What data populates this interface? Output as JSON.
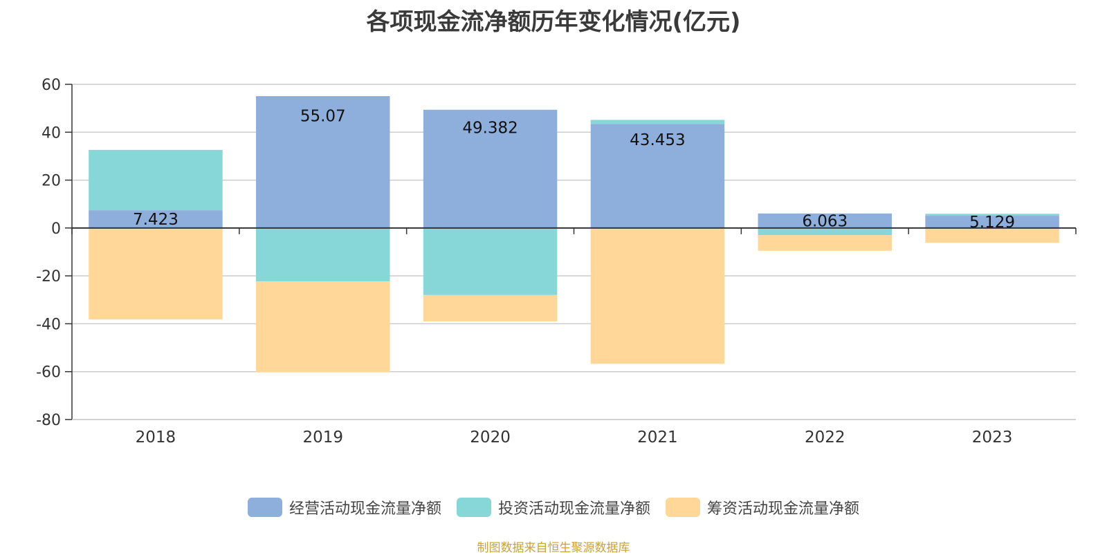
{
  "chart_data": {
    "type": "bar",
    "stacked": true,
    "title": "各项现金流净额历年变化情况(亿元)",
    "categories": [
      "2018",
      "2019",
      "2020",
      "2021",
      "2022",
      "2023"
    ],
    "ylim": [
      -80,
      60
    ],
    "yticks": [
      60,
      40,
      20,
      0,
      -20,
      -40,
      -60,
      -80
    ],
    "grid": true,
    "legend_position": "bottom",
    "series": [
      {
        "name": "经营活动现金流量净额",
        "color": "#8eaedb",
        "values": [
          7.423,
          55.07,
          49.382,
          43.453,
          6.063,
          5.129
        ],
        "labels": [
          "7.423",
          "55.07",
          "49.382",
          "43.453",
          "6.063",
          "5.129"
        ]
      },
      {
        "name": "投资活动现金流量净额",
        "color": "#87d6d8",
        "values": [
          25.2,
          -22.3,
          -28.0,
          1.7,
          -3.0,
          0.8
        ]
      },
      {
        "name": "筹资活动现金流量净额",
        "color": "#ffd899",
        "values": [
          -38.2,
          -38.0,
          -11.0,
          -56.7,
          -6.5,
          -6.2
        ]
      }
    ]
  },
  "source_note": "制图数据来自恒生聚源数据库"
}
